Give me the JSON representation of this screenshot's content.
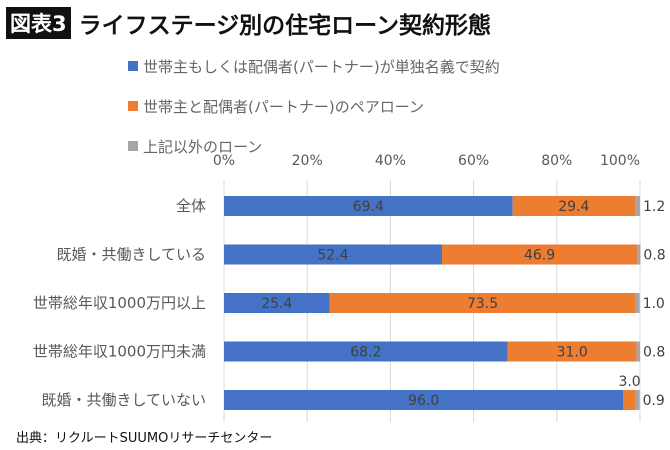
{
  "header": {
    "badge": "図表3",
    "title": "ライフステージ別の住宅ローン契約形態"
  },
  "source": "出典：リクルートSUUMOリサーチセンター",
  "chart_data": {
    "type": "bar",
    "orientation": "horizontal",
    "stacked": "percent",
    "categories": [
      "全体",
      "既婚・共働きしている",
      "世帯総年収1000万円以上",
      "世帯総年収1000万円未満",
      "既婚・共働きしていない"
    ],
    "series": [
      {
        "name": "世帯主もしくは配偶者(パートナー)が単独名義で契約",
        "color": "#4472C4",
        "values": [
          69.4,
          52.4,
          25.4,
          68.2,
          96.0
        ],
        "labels": [
          "69.4",
          "52.4",
          "25.4",
          "68.2",
          "96.0"
        ]
      },
      {
        "name": "世帯主と配偶者(パートナー)のペアローン",
        "color": "#ED7D31",
        "values": [
          29.4,
          46.9,
          73.5,
          31.0,
          3.0
        ],
        "labels": [
          "29.4",
          "46.9",
          "73.5",
          "31.0",
          "3.0"
        ]
      },
      {
        "name": "上記以外のローン",
        "color": "#A5A5A5",
        "values": [
          1.2,
          0.8,
          1.0,
          0.8,
          0.9
        ],
        "labels": [
          "1.2",
          "0.8",
          "1.0",
          "0.8",
          "0.9"
        ]
      }
    ],
    "xticks": [
      "0%",
      "20%",
      "40%",
      "60%",
      "80%",
      "100%"
    ],
    "xlim": [
      0,
      100
    ],
    "grid": true,
    "legend_position": "top"
  }
}
